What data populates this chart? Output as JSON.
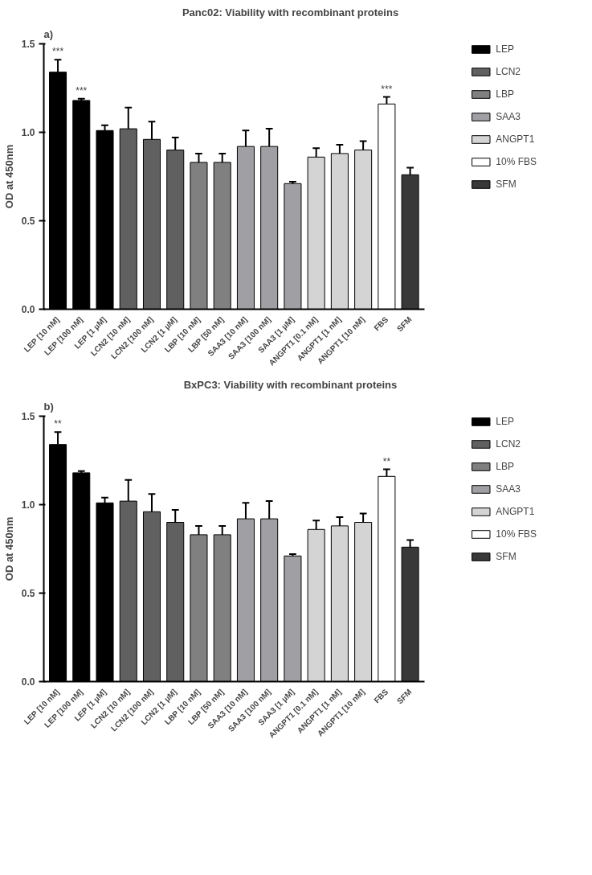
{
  "chart_data": [
    {
      "type": "bar",
      "title": "Panc02: Viability with recombinant proteins",
      "ylabel": "OD at 450nm",
      "categories": [
        "LEP [10 nM]",
        "LEP [100 nM]",
        "LEP [1 µM]",
        "LCN2 [10 nM]",
        "LCN2 [100 nM]",
        "LCN2 [1 µM]",
        "LBP [10 nM]",
        "LBP [50 nM]",
        "SAA3 [10 nM]",
        "SAA3 [100 nM]",
        "SAA3 [1 µM]",
        "ANGPT1 [0.1 nM]",
        "ANGPT1 [1 nM]",
        "ANGPT1 [10 nM]",
        "FBS",
        "SFM"
      ],
      "series": [
        {
          "name": "LEP",
          "color": "#000000",
          "values": [
            1.34,
            1.18,
            1.01,
            null,
            null,
            null,
            null,
            null,
            null,
            null,
            null,
            null,
            null,
            null,
            null,
            null
          ],
          "errors": [
            [
              1.34,
              1.41
            ],
            [
              1.18,
              1.19
            ],
            [
              1.01,
              1.04
            ],
            null,
            null,
            null,
            null,
            null,
            null,
            null,
            null,
            null,
            null,
            null,
            null,
            null
          ]
        },
        {
          "name": "LCN2",
          "color": "#606060",
          "values": [
            null,
            null,
            null,
            1.02,
            0.96,
            0.9,
            null,
            null,
            null,
            null,
            null,
            null,
            null,
            null,
            null,
            null
          ],
          "errors": [
            null,
            null,
            null,
            [
              1.02,
              1.14
            ],
            [
              0.96,
              1.06
            ],
            [
              0.9,
              0.97
            ],
            null,
            null,
            null,
            null,
            null,
            null,
            null,
            null,
            null,
            null
          ]
        },
        {
          "name": "LBP",
          "color": "#808080",
          "values": [
            null,
            null,
            null,
            null,
            null,
            null,
            0.83,
            0.83,
            null,
            null,
            null,
            null,
            null,
            null,
            null,
            null
          ],
          "errors": [
            null,
            null,
            null,
            null,
            null,
            null,
            [
              0.83,
              0.88
            ],
            [
              0.83,
              0.88
            ],
            null,
            null,
            null,
            null,
            null,
            null,
            null,
            null
          ]
        },
        {
          "name": "SAA3",
          "color": "#a0a0a4",
          "values": [
            null,
            null,
            null,
            null,
            null,
            null,
            null,
            null,
            0.92,
            0.92,
            0.71,
            null,
            null,
            null,
            null,
            null
          ],
          "errors": [
            null,
            null,
            null,
            null,
            null,
            null,
            null,
            null,
            [
              0.92,
              1.01
            ],
            [
              0.92,
              1.02
            ],
            [
              0.71,
              0.72
            ],
            null,
            null,
            null,
            null,
            null
          ]
        },
        {
          "name": "ANGPT1",
          "color": "#d4d4d4",
          "values": [
            null,
            null,
            null,
            null,
            null,
            null,
            null,
            null,
            null,
            null,
            null,
            0.86,
            0.88,
            0.9,
            null,
            null
          ],
          "errors": [
            null,
            null,
            null,
            null,
            null,
            null,
            null,
            null,
            null,
            null,
            null,
            [
              0.86,
              0.91
            ],
            [
              0.88,
              0.93
            ],
            [
              0.9,
              0.95
            ],
            null,
            null
          ]
        },
        {
          "name": "10% FBS",
          "color": "#ffffff",
          "values": [
            null,
            null,
            null,
            null,
            null,
            null,
            null,
            null,
            null,
            null,
            null,
            null,
            null,
            null,
            1.16,
            null
          ],
          "errors": [
            null,
            null,
            null,
            null,
            null,
            null,
            null,
            null,
            null,
            null,
            null,
            null,
            null,
            null,
            [
              1.16,
              1.2
            ],
            null
          ]
        },
        {
          "name": "SFM",
          "color": "#383838",
          "values": [
            null,
            null,
            null,
            null,
            null,
            null,
            null,
            null,
            null,
            null,
            null,
            null,
            null,
            null,
            null,
            0.76
          ],
          "errors": [
            null,
            null,
            null,
            null,
            null,
            null,
            null,
            null,
            null,
            null,
            null,
            null,
            null,
            null,
            null,
            [
              0.76,
              0.8
            ]
          ]
        }
      ],
      "ylim": [
        0,
        1.5
      ],
      "yticks": [
        {
          "value": 0,
          "label": "0.0"
        },
        {
          "value": 0.5,
          "label": "0.5"
        },
        {
          "value": 1,
          "label": "1.0"
        },
        {
          "value": 1.5,
          "label": "1.5"
        }
      ],
      "grid": false,
      "legend": "right",
      "annotations": [
        "a)",
        {
          "text": "***",
          "x": "LEP [10 nM]",
          "y": 1.34
        },
        {
          "text": "***",
          "x": "LEP [100 nM]",
          "y": 1.18
        },
        {
          "text": "***",
          "x": "FBS",
          "y": 1.16
        }
      ]
    },
    {
      "type": "bar",
      "title": "BxPC3: Viability with recombinant proteins",
      "ylabel": "OD at 450nm",
      "categories": [
        "LEP [10 nM]",
        "LEP [100 nM]",
        "LEP [1 µM]",
        "LCN2 [10 nM]",
        "LCN2 [100 nM]",
        "LCN2 [1 µM]",
        "LBP [10 nM]",
        "LBP [50 nM]",
        "SAA3 [10 nM]",
        "SAA3 [100 nM]",
        "SAA3 [1 µM]",
        "ANGPT1 [0.1 nM]",
        "ANGPT1 [1 nM]",
        "ANGPT1 [10 nM]",
        "FBS",
        "SFM"
      ],
      "series": [
        {
          "name": "LEP",
          "color": "#000000",
          "values": [
            1.34,
            1.18,
            1.01,
            null,
            null,
            null,
            null,
            null,
            null,
            null,
            null,
            null,
            null,
            null,
            null,
            null
          ],
          "errors": [
            [
              1.34,
              1.41
            ],
            [
              1.18,
              1.19
            ],
            [
              1.01,
              1.04
            ],
            null,
            null,
            null,
            null,
            null,
            null,
            null,
            null,
            null,
            null,
            null,
            null,
            null
          ]
        },
        {
          "name": "LCN2",
          "color": "#606060",
          "values": [
            null,
            null,
            null,
            1.02,
            0.96,
            0.9,
            null,
            null,
            null,
            null,
            null,
            null,
            null,
            null,
            null,
            null
          ],
          "errors": [
            null,
            null,
            null,
            [
              1.02,
              1.14
            ],
            [
              0.96,
              1.06
            ],
            [
              0.9,
              0.97
            ],
            null,
            null,
            null,
            null,
            null,
            null,
            null,
            null,
            null,
            null
          ]
        },
        {
          "name": "LBP",
          "color": "#808080",
          "values": [
            null,
            null,
            null,
            null,
            null,
            null,
            0.83,
            0.83,
            null,
            null,
            null,
            null,
            null,
            null,
            null,
            null
          ],
          "errors": [
            null,
            null,
            null,
            null,
            null,
            null,
            [
              0.83,
              0.88
            ],
            [
              0.83,
              0.88
            ],
            null,
            null,
            null,
            null,
            null,
            null,
            null,
            null
          ]
        },
        {
          "name": "SAA3",
          "color": "#a0a0a4",
          "values": [
            null,
            null,
            null,
            null,
            null,
            null,
            null,
            null,
            0.92,
            0.92,
            0.71,
            null,
            null,
            null,
            null,
            null
          ],
          "errors": [
            null,
            null,
            null,
            null,
            null,
            null,
            null,
            null,
            [
              0.92,
              1.01
            ],
            [
              0.92,
              1.02
            ],
            [
              0.71,
              0.72
            ],
            null,
            null,
            null,
            null,
            null
          ]
        },
        {
          "name": "ANGPT1",
          "color": "#d4d4d4",
          "values": [
            null,
            null,
            null,
            null,
            null,
            null,
            null,
            null,
            null,
            null,
            null,
            0.86,
            0.88,
            0.9,
            null,
            null
          ],
          "errors": [
            null,
            null,
            null,
            null,
            null,
            null,
            null,
            null,
            null,
            null,
            null,
            [
              0.86,
              0.91
            ],
            [
              0.88,
              0.93
            ],
            [
              0.9,
              0.95
            ],
            null,
            null
          ]
        },
        {
          "name": "10% FBS",
          "color": "#ffffff",
          "values": [
            null,
            null,
            null,
            null,
            null,
            null,
            null,
            null,
            null,
            null,
            null,
            null,
            null,
            null,
            1.16,
            null
          ],
          "errors": [
            null,
            null,
            null,
            null,
            null,
            null,
            null,
            null,
            null,
            null,
            null,
            null,
            null,
            null,
            [
              1.16,
              1.2
            ],
            null
          ]
        },
        {
          "name": "SFM",
          "color": "#383838",
          "values": [
            null,
            null,
            null,
            null,
            null,
            null,
            null,
            null,
            null,
            null,
            null,
            null,
            null,
            null,
            null,
            0.76
          ],
          "errors": [
            null,
            null,
            null,
            null,
            null,
            null,
            null,
            null,
            null,
            null,
            null,
            null,
            null,
            null,
            null,
            [
              0.76,
              0.8
            ]
          ]
        }
      ],
      "ylim": [
        0,
        1.5
      ],
      "yticks": [
        {
          "value": 0,
          "label": "0.0"
        },
        {
          "value": 0.5,
          "label": "0.5"
        },
        {
          "value": 1,
          "label": "1.0"
        },
        {
          "value": 1.5,
          "label": "1.5"
        }
      ],
      "grid": false,
      "legend": "right",
      "annotations": [
        "b)",
        {
          "text": "**",
          "x": "LEP [10 nM]",
          "y": 1.34
        },
        {
          "text": "**",
          "x": "FBS",
          "y": 1.16
        }
      ]
    }
  ]
}
